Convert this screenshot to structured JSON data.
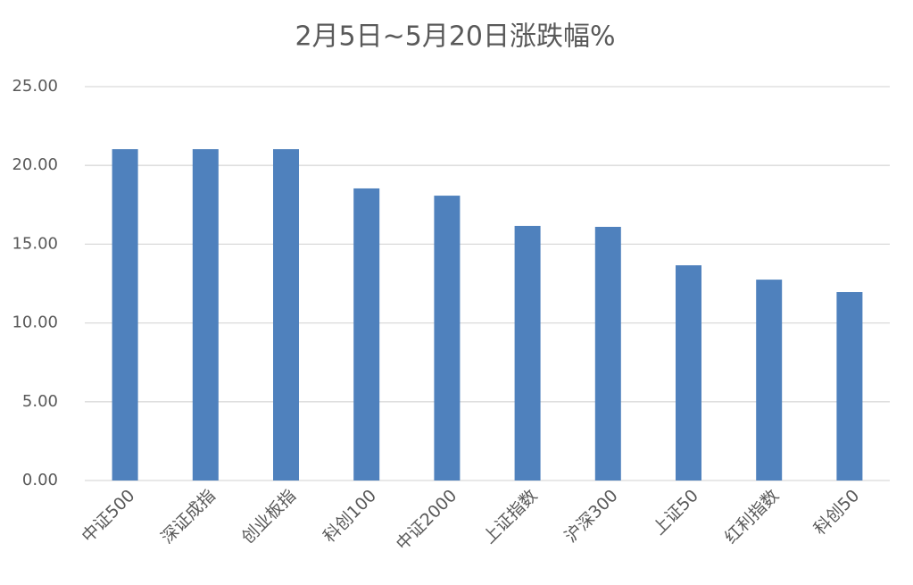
{
  "chart_data": {
    "type": "bar",
    "title": "2月5日~5月20日涨跌幅%",
    "categories": [
      "中证500",
      "深证成指",
      "创业板指",
      "科创100",
      "中证2000",
      "上证指数",
      "沪深300",
      "上证50",
      "红利指数",
      "科创50"
    ],
    "values": [
      21.03,
      21.03,
      21.03,
      18.54,
      18.08,
      16.16,
      16.1,
      13.66,
      12.75,
      11.96
    ],
    "color": "#4f81bd",
    "ylim": [
      0,
      25
    ],
    "yticks": [
      {
        "value": 0,
        "label": "0.00"
      },
      {
        "value": 5,
        "label": "5.00"
      },
      {
        "value": 10,
        "label": "10.00"
      },
      {
        "value": 15,
        "label": "15.00"
      },
      {
        "value": 20,
        "label": "20.00"
      },
      {
        "value": 25,
        "label": "25.00"
      }
    ],
    "grid": true
  }
}
